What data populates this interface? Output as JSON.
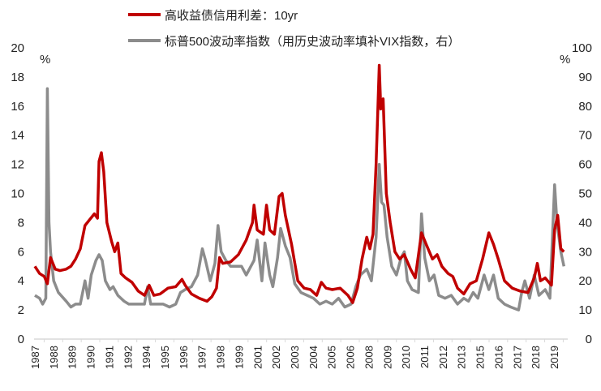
{
  "chart_data": {
    "type": "line",
    "title": "",
    "legend_position": "top",
    "left_axis": {
      "label": "%",
      "ylim": [
        0,
        20
      ],
      "ticks": [
        "0",
        "2",
        "4",
        "6",
        "8",
        "10",
        "12",
        "14",
        "16",
        "18",
        "20"
      ]
    },
    "right_axis": {
      "label": "%",
      "ylim": [
        0,
        100
      ],
      "ticks": [
        "0",
        "10",
        "20",
        "30",
        "40",
        "50",
        "60",
        "70",
        "80",
        "90",
        "100"
      ]
    },
    "x_range": [
      1987,
      2020.9
    ],
    "x_tick_labels": [
      "1987",
      "1988",
      "1989",
      "1990",
      "1991",
      "1992",
      "1994",
      "1995",
      "1996",
      "1997",
      "1998",
      "1999",
      "2001",
      "2002",
      "2003",
      "2004",
      "2005",
      "2006",
      "2008",
      "2009",
      "2010",
      "2011",
      "2012",
      "2013",
      "2015",
      "2016",
      "2017",
      "2018",
      "2019"
    ],
    "grid": false,
    "series": [
      {
        "name": "高收益债信用利差：10yr",
        "axis": "left",
        "color": "#c00000",
        "points": [
          [
            1987.0,
            5.0
          ],
          [
            1987.3,
            4.5
          ],
          [
            1987.6,
            4.3
          ],
          [
            1987.8,
            3.8
          ],
          [
            1988.0,
            5.6
          ],
          [
            1988.3,
            4.8
          ],
          [
            1988.6,
            4.7
          ],
          [
            1989.0,
            4.8
          ],
          [
            1989.3,
            5.0
          ],
          [
            1989.6,
            5.5
          ],
          [
            1989.9,
            6.2
          ],
          [
            1990.2,
            7.8
          ],
          [
            1990.5,
            8.2
          ],
          [
            1990.8,
            8.6
          ],
          [
            1991.0,
            8.3
          ],
          [
            1991.1,
            12.2
          ],
          [
            1991.25,
            12.8
          ],
          [
            1991.4,
            11.5
          ],
          [
            1991.6,
            8.0
          ],
          [
            1991.9,
            6.7
          ],
          [
            1992.1,
            6.0
          ],
          [
            1992.3,
            6.6
          ],
          [
            1992.5,
            4.5
          ],
          [
            1992.8,
            4.2
          ],
          [
            1993.2,
            3.9
          ],
          [
            1993.6,
            3.3
          ],
          [
            1994.0,
            3.0
          ],
          [
            1994.3,
            3.7
          ],
          [
            1994.6,
            3.0
          ],
          [
            1995.0,
            3.1
          ],
          [
            1995.5,
            3.5
          ],
          [
            1996.0,
            3.6
          ],
          [
            1996.4,
            4.1
          ],
          [
            1996.6,
            3.7
          ],
          [
            1997.0,
            3.1
          ],
          [
            1997.5,
            2.8
          ],
          [
            1998.0,
            2.6
          ],
          [
            1998.3,
            2.9
          ],
          [
            1998.6,
            3.5
          ],
          [
            1998.8,
            5.6
          ],
          [
            1999.0,
            5.2
          ],
          [
            1999.5,
            5.3
          ],
          [
            2000.0,
            5.8
          ],
          [
            2000.5,
            6.8
          ],
          [
            2000.9,
            8.0
          ],
          [
            2001.0,
            9.2
          ],
          [
            2001.2,
            7.5
          ],
          [
            2001.6,
            7.2
          ],
          [
            2001.8,
            9.2
          ],
          [
            2002.0,
            7.5
          ],
          [
            2002.3,
            7.2
          ],
          [
            2002.6,
            9.8
          ],
          [
            2002.8,
            10.0
          ],
          [
            2003.0,
            8.5
          ],
          [
            2003.4,
            6.5
          ],
          [
            2003.8,
            4.0
          ],
          [
            2004.2,
            3.5
          ],
          [
            2004.6,
            3.4
          ],
          [
            2005.0,
            3.0
          ],
          [
            2005.3,
            3.9
          ],
          [
            2005.6,
            3.5
          ],
          [
            2006.0,
            3.4
          ],
          [
            2006.5,
            3.5
          ],
          [
            2007.0,
            3.0
          ],
          [
            2007.3,
            2.5
          ],
          [
            2007.6,
            3.5
          ],
          [
            2007.9,
            5.5
          ],
          [
            2008.2,
            7.0
          ],
          [
            2008.4,
            6.2
          ],
          [
            2008.6,
            7.2
          ],
          [
            2008.8,
            12.0
          ],
          [
            2009.0,
            18.8
          ],
          [
            2009.1,
            15.8
          ],
          [
            2009.25,
            16.5
          ],
          [
            2009.45,
            10.0
          ],
          [
            2009.7,
            8.0
          ],
          [
            2010.0,
            6.0
          ],
          [
            2010.3,
            5.5
          ],
          [
            2010.6,
            5.8
          ],
          [
            2011.0,
            4.8
          ],
          [
            2011.3,
            4.2
          ],
          [
            2011.7,
            7.3
          ],
          [
            2012.0,
            6.5
          ],
          [
            2012.4,
            5.5
          ],
          [
            2012.7,
            5.8
          ],
          [
            2013.0,
            5.0
          ],
          [
            2013.4,
            4.5
          ],
          [
            2013.7,
            4.3
          ],
          [
            2014.0,
            3.5
          ],
          [
            2014.4,
            3.1
          ],
          [
            2014.8,
            3.8
          ],
          [
            2015.2,
            4.0
          ],
          [
            2015.6,
            5.5
          ],
          [
            2016.0,
            7.3
          ],
          [
            2016.3,
            6.5
          ],
          [
            2016.6,
            5.5
          ],
          [
            2017.0,
            4.0
          ],
          [
            2017.5,
            3.5
          ],
          [
            2018.0,
            3.3
          ],
          [
            2018.5,
            3.2
          ],
          [
            2018.9,
            4.2
          ],
          [
            2019.1,
            5.2
          ],
          [
            2019.3,
            4.0
          ],
          [
            2019.6,
            4.2
          ],
          [
            2020.0,
            3.7
          ],
          [
            2020.2,
            7.5
          ],
          [
            2020.4,
            8.5
          ],
          [
            2020.6,
            6.2
          ],
          [
            2020.8,
            6.0
          ]
        ]
      },
      {
        "name": "标普500波动率指数（用历史波动率填补VIX指数，右）",
        "axis": "right",
        "color": "#8c8c8c",
        "points": [
          [
            1987.0,
            15
          ],
          [
            1987.3,
            14
          ],
          [
            1987.5,
            12
          ],
          [
            1987.7,
            14
          ],
          [
            1987.8,
            86
          ],
          [
            1987.9,
            40
          ],
          [
            1988.0,
            30
          ],
          [
            1988.2,
            20
          ],
          [
            1988.5,
            16
          ],
          [
            1989.0,
            13
          ],
          [
            1989.3,
            11
          ],
          [
            1989.6,
            12
          ],
          [
            1989.9,
            12
          ],
          [
            1990.2,
            20
          ],
          [
            1990.4,
            14
          ],
          [
            1990.6,
            22
          ],
          [
            1990.9,
            27
          ],
          [
            1991.1,
            29
          ],
          [
            1991.3,
            27
          ],
          [
            1991.5,
            20
          ],
          [
            1991.8,
            17
          ],
          [
            1992.0,
            18
          ],
          [
            1992.3,
            15
          ],
          [
            1992.7,
            13
          ],
          [
            1993.0,
            12
          ],
          [
            1993.5,
            12
          ],
          [
            1994.0,
            12
          ],
          [
            1994.2,
            18
          ],
          [
            1994.4,
            12
          ],
          [
            1994.8,
            12
          ],
          [
            1995.2,
            12
          ],
          [
            1995.6,
            11
          ],
          [
            1996.0,
            12
          ],
          [
            1996.3,
            16
          ],
          [
            1996.6,
            17
          ],
          [
            1997.0,
            18
          ],
          [
            1997.4,
            22
          ],
          [
            1997.7,
            31
          ],
          [
            1997.9,
            27
          ],
          [
            1998.2,
            20
          ],
          [
            1998.5,
            26
          ],
          [
            1998.7,
            39
          ],
          [
            1998.9,
            30
          ],
          [
            1999.2,
            27
          ],
          [
            1999.5,
            25
          ],
          [
            1999.8,
            25
          ],
          [
            2000.2,
            25
          ],
          [
            2000.5,
            22
          ],
          [
            2000.8,
            25
          ],
          [
            2001.0,
            27
          ],
          [
            2001.2,
            34
          ],
          [
            2001.5,
            20
          ],
          [
            2001.7,
            33
          ],
          [
            2002.0,
            22
          ],
          [
            2002.2,
            18
          ],
          [
            2002.5,
            28
          ],
          [
            2002.7,
            38
          ],
          [
            2003.0,
            32
          ],
          [
            2003.3,
            28
          ],
          [
            2003.6,
            19
          ],
          [
            2004.0,
            16
          ],
          [
            2004.4,
            15
          ],
          [
            2004.8,
            14
          ],
          [
            2005.2,
            12
          ],
          [
            2005.6,
            13
          ],
          [
            2006.0,
            12
          ],
          [
            2006.4,
            14
          ],
          [
            2006.8,
            11
          ],
          [
            2007.2,
            12
          ],
          [
            2007.5,
            18
          ],
          [
            2007.8,
            22
          ],
          [
            2008.2,
            24
          ],
          [
            2008.5,
            20
          ],
          [
            2008.8,
            35
          ],
          [
            2009.0,
            60
          ],
          [
            2009.15,
            47
          ],
          [
            2009.3,
            46
          ],
          [
            2009.5,
            35
          ],
          [
            2009.8,
            25
          ],
          [
            2010.1,
            22
          ],
          [
            2010.4,
            28
          ],
          [
            2010.6,
            30
          ],
          [
            2010.8,
            20
          ],
          [
            2011.1,
            17
          ],
          [
            2011.5,
            16
          ],
          [
            2011.7,
            43
          ],
          [
            2011.9,
            28
          ],
          [
            2012.2,
            20
          ],
          [
            2012.5,
            22
          ],
          [
            2012.8,
            15
          ],
          [
            2013.2,
            14
          ],
          [
            2013.6,
            15
          ],
          [
            2014.0,
            12
          ],
          [
            2014.4,
            14
          ],
          [
            2014.7,
            13
          ],
          [
            2015.0,
            16
          ],
          [
            2015.3,
            14
          ],
          [
            2015.7,
            22
          ],
          [
            2016.0,
            17
          ],
          [
            2016.3,
            22
          ],
          [
            2016.6,
            14
          ],
          [
            2017.0,
            12
          ],
          [
            2017.4,
            11
          ],
          [
            2017.9,
            10
          ],
          [
            2018.1,
            16
          ],
          [
            2018.3,
            20
          ],
          [
            2018.6,
            14
          ],
          [
            2018.9,
            22
          ],
          [
            2019.2,
            15
          ],
          [
            2019.6,
            17
          ],
          [
            2019.9,
            14
          ],
          [
            2020.2,
            53
          ],
          [
            2020.35,
            40
          ],
          [
            2020.6,
            30
          ],
          [
            2020.8,
            25
          ]
        ]
      }
    ]
  }
}
